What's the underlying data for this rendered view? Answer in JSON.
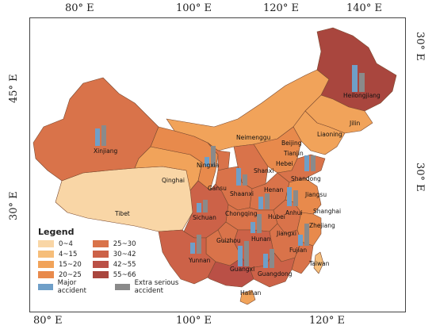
{
  "axes": {
    "top": [
      "80° E",
      "100° E",
      "120° E",
      "140° E"
    ],
    "bottom": [
      "80° E",
      "100° E",
      "120° E"
    ],
    "left": [
      "45° E",
      "30° E"
    ],
    "right": [
      "30° E",
      "30° E"
    ]
  },
  "regions": {
    "Heilongjiang": "Heilongjiang",
    "Jilin": "Jilin",
    "Liaoning": "Liaoning",
    "Neimenggu": "Neimenggu",
    "Beijing": "Beijing",
    "Tianjin": "Tianjin",
    "Hebei": "Hebei",
    "Shanxi": "Shanxi",
    "Shandong": "Shandong",
    "Ningxia": "Ningxia",
    "Gansu": "Gansu",
    "Qinghai": "Qinghai",
    "Xinjiang": "Xinjiang",
    "Tibet": "Tibet",
    "Shaanxi": "Shaanxi",
    "Henan": "Henan",
    "Jiangsu": "Jiangsu",
    "Anhui": "Anhui",
    "Shanghai": "Shanghai",
    "Hubei": "Hubei",
    "Sichuan": "Sichuan",
    "Chongqing": "Chongqing",
    "Zhejiang": "Zhejiang",
    "Jiangxi": "Jiangxi",
    "Hunan": "Hunan",
    "Guizhou": "Guizhou",
    "Fujian": "Fujian",
    "Taiwan": "Taiwan",
    "Yunnan": "Yunnan",
    "Guangxi": "Guangxi",
    "Guangdong": "Guangdong",
    "Hainan": "Hainan"
  },
  "legend": {
    "title": "Legend",
    "classes": [
      {
        "label": "0~4",
        "color": "#f9d6a6"
      },
      {
        "label": "4~15",
        "color": "#f6be7a"
      },
      {
        "label": "15~20",
        "color": "#f1a35a"
      },
      {
        "label": "20~25",
        "color": "#e88a4c"
      },
      {
        "label": "25~30",
        "color": "#d9734a"
      },
      {
        "label": "30~42",
        "color": "#cc6248"
      },
      {
        "label": "42~55",
        "color": "#ba5046"
      },
      {
        "label": "55~66",
        "color": "#a9463e"
      }
    ],
    "major_label": "Major accident",
    "extra_label": "Extra serious accident",
    "major_color": "#6f9fc8",
    "extra_color": "#8a8a8a"
  }
}
